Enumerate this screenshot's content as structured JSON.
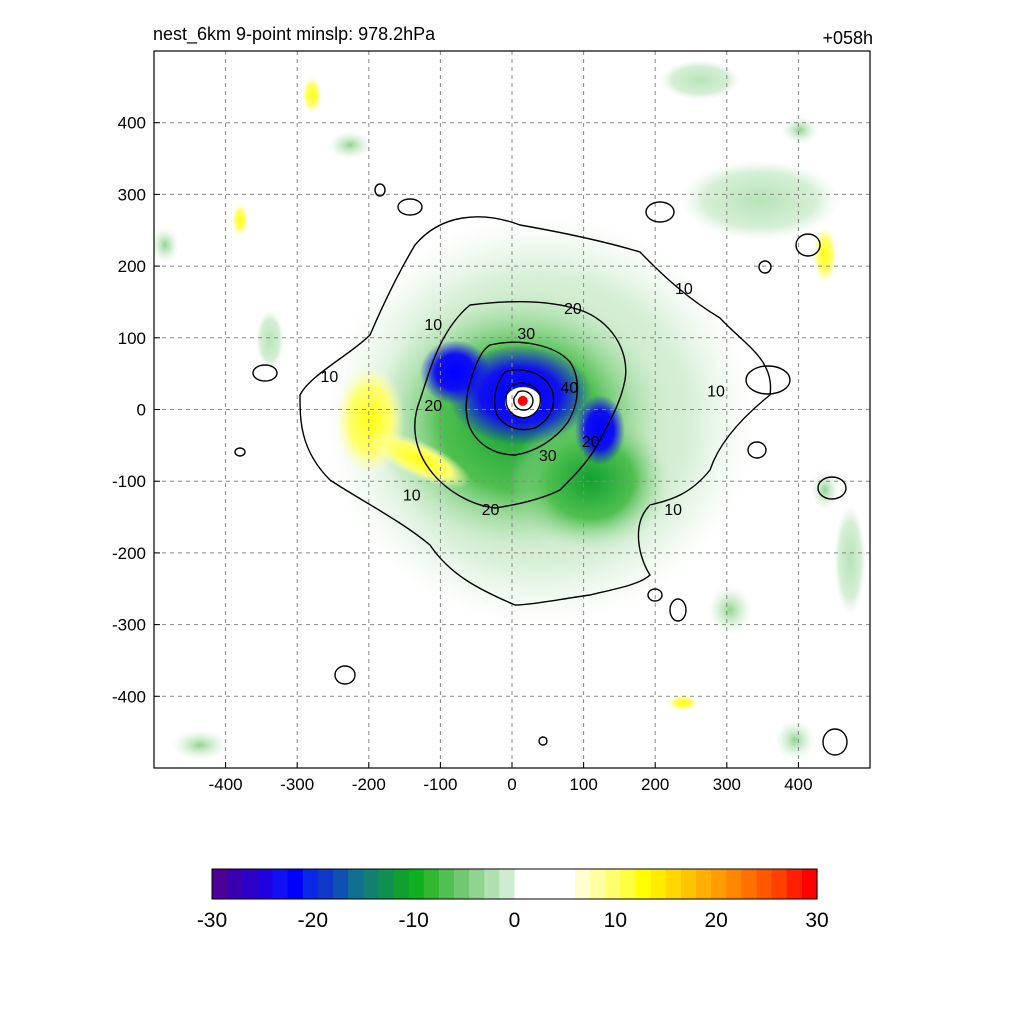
{
  "header": {
    "title": "nest_6km  9-point minslp: 978.2hPa",
    "forecast_hour": "+058h"
  },
  "chart_data": {
    "type": "heatmap",
    "title": "nest_6km  9-point minslp: 978.2hPa",
    "xlabel": "",
    "ylabel": "",
    "xlim": [
      -500,
      500
    ],
    "ylim": [
      -500,
      500
    ],
    "x_ticks": [
      -400,
      -300,
      -200,
      -100,
      0,
      100,
      200,
      300,
      400
    ],
    "y_ticks": [
      400,
      300,
      200,
      100,
      0,
      -100,
      -200,
      -300,
      -400
    ],
    "x_tick_labels": [
      "-400",
      "-300",
      "-200",
      "-100",
      "0",
      "100",
      "200",
      "300",
      "400"
    ],
    "y_tick_labels": [
      "400",
      "300",
      "200",
      "100",
      "0",
      "-100",
      "-200",
      "-300",
      "-400"
    ],
    "grid": true,
    "storm_center": [
      15,
      12
    ],
    "contour_levels": [
      10,
      20,
      30,
      40
    ],
    "contour_labels": [
      {
        "text": "10",
        "x": 240,
        "y": 168
      },
      {
        "text": "10",
        "x": -110,
        "y": 118
      },
      {
        "text": "10",
        "x": -255,
        "y": 45
      },
      {
        "text": "10",
        "x": 285,
        "y": 25
      },
      {
        "text": "10",
        "x": -140,
        "y": -120
      },
      {
        "text": "10",
        "x": 225,
        "y": -140
      },
      {
        "text": "20",
        "x": 85,
        "y": 140
      },
      {
        "text": "20",
        "x": -110,
        "y": 5
      },
      {
        "text": "20",
        "x": -30,
        "y": -140
      },
      {
        "text": "20",
        "x": 110,
        "y": -45
      },
      {
        "text": "30",
        "x": 20,
        "y": 105
      },
      {
        "text": "30",
        "x": 50,
        "y": -65
      },
      {
        "text": "40",
        "x": 80,
        "y": 30
      }
    ],
    "colorbar": {
      "min": -30,
      "max": 30,
      "tick_values": [
        -30,
        -20,
        -10,
        0,
        10,
        20,
        30
      ],
      "tick_labels": [
        "-30",
        "-20",
        "-10",
        "0",
        "10",
        "20",
        "30"
      ],
      "colors": [
        "#4b0096",
        "#3a00b0",
        "#2d00c8",
        "#2000e0",
        "#1010f5",
        "#0000ff",
        "#0a28e6",
        "#1038c8",
        "#1050b0",
        "#107090",
        "#108070",
        "#109050",
        "#10a030",
        "#10b020",
        "#30b830",
        "#50c050",
        "#70c870",
        "#90d490",
        "#b0e0b0",
        "#d0ecd0",
        "#ffffff",
        "#ffffff",
        "#ffffff",
        "#ffffff",
        "#ffffd0",
        "#ffffa0",
        "#ffff70",
        "#ffff40",
        "#ffff00",
        "#ffec00",
        "#ffd800",
        "#ffc400",
        "#ffb000",
        "#ff9c00",
        "#ff8800",
        "#ff7000",
        "#ff5800",
        "#ff4000",
        "#ff2000",
        "#ff0000"
      ]
    }
  }
}
